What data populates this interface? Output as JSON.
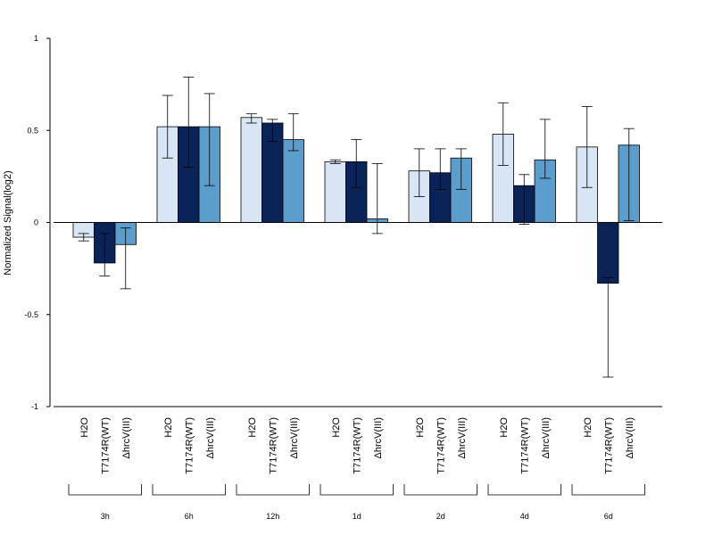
{
  "chart_data": {
    "type": "bar",
    "ylabel": "Normalized Signal(log2)",
    "ylim": [
      -1,
      1
    ],
    "yticks": [
      "1",
      "0.5",
      "0",
      "-0.5",
      "-1"
    ],
    "categories": [
      "H2O",
      "T7174R(WT)",
      "ΔhrcV(III)"
    ],
    "category_colors": [
      "#d8e5f4",
      "#0b2458",
      "#5b9dcc"
    ],
    "groups": [
      "3h",
      "6h",
      "12h",
      "1d",
      "2d",
      "4d",
      "6d"
    ],
    "series": [
      {
        "values": [
          -0.08,
          -0.22,
          -0.12
        ],
        "err_low": [
          -0.1,
          -0.29,
          -0.36
        ],
        "err_high": [
          -0.06,
          -0.06,
          -0.03
        ]
      },
      {
        "values": [
          0.52,
          0.52,
          0.52
        ],
        "err_low": [
          0.35,
          0.3,
          0.2
        ],
        "err_high": [
          0.69,
          0.79,
          0.7
        ]
      },
      {
        "values": [
          0.57,
          0.54,
          0.45
        ],
        "err_low": [
          0.54,
          0.44,
          0.39
        ],
        "err_high": [
          0.59,
          0.56,
          0.59
        ]
      },
      {
        "values": [
          0.33,
          0.33,
          0.02
        ],
        "err_low": [
          0.32,
          0.19,
          -0.06
        ],
        "err_high": [
          0.34,
          0.45,
          0.32
        ]
      },
      {
        "values": [
          0.28,
          0.27,
          0.35
        ],
        "err_low": [
          0.14,
          0.18,
          0.18
        ],
        "err_high": [
          0.4,
          0.4,
          0.4
        ]
      },
      {
        "values": [
          0.48,
          0.2,
          0.34
        ],
        "err_low": [
          0.31,
          -0.01,
          0.24
        ],
        "err_high": [
          0.65,
          0.26,
          0.56
        ]
      },
      {
        "values": [
          0.41,
          -0.33,
          0.42
        ],
        "err_low": [
          0.19,
          -0.84,
          0.01
        ],
        "err_high": [
          0.63,
          -0.3,
          0.51
        ]
      }
    ]
  }
}
